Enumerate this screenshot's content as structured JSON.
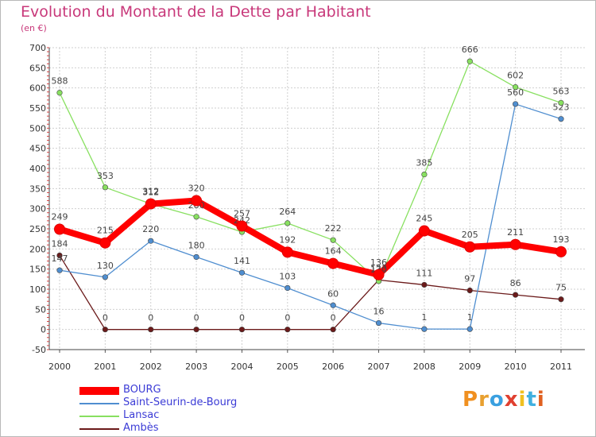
{
  "header": {
    "title": "Evolution du Montant de la Dette par Habitant",
    "unit": "(en €)"
  },
  "chart_data": {
    "type": "line",
    "title": "Evolution du Montant de la Dette par Habitant",
    "subtitle": "(en €)",
    "x": [
      "2000",
      "2001",
      "2002",
      "2003",
      "2004",
      "2005",
      "2006",
      "2007",
      "2008",
      "2009",
      "2010",
      "2011"
    ],
    "ylim": [
      -50,
      700
    ],
    "yticks": [
      "-50",
      "0",
      "50",
      "100",
      "150",
      "200",
      "250",
      "300",
      "350",
      "400",
      "450",
      "500",
      "550",
      "600",
      "650",
      "700"
    ],
    "grid": true,
    "legend_position": "bottom-left",
    "series": [
      {
        "name": "BOURG",
        "color": "#ff0000",
        "values": [
          249,
          215,
          312,
          320,
          257,
          192,
          164,
          136,
          245,
          205,
          211,
          193
        ]
      },
      {
        "name": "Saint-Seurin-de-Bourg",
        "color": "#4f8ed0",
        "values": [
          147,
          130,
          220,
          180,
          141,
          103,
          60,
          16,
          1,
          1,
          560,
          523
        ]
      },
      {
        "name": "Lansac",
        "color": "#88e060",
        "values": [
          588,
          353,
          312,
          280,
          242,
          264,
          222,
          120,
          385,
          666,
          602,
          563
        ]
      },
      {
        "name": "Ambès",
        "color": "#6b1a1a",
        "values": [
          184,
          0,
          0,
          0,
          0,
          0,
          0,
          123,
          111,
          97,
          86,
          75
        ]
      }
    ]
  },
  "logo": {
    "text": "Proxiti",
    "colors": [
      "#f09020",
      "#e8a030",
      "#3aa0e0",
      "#e04030",
      "#f0c020",
      "#40b0e0",
      "#e06020"
    ]
  }
}
